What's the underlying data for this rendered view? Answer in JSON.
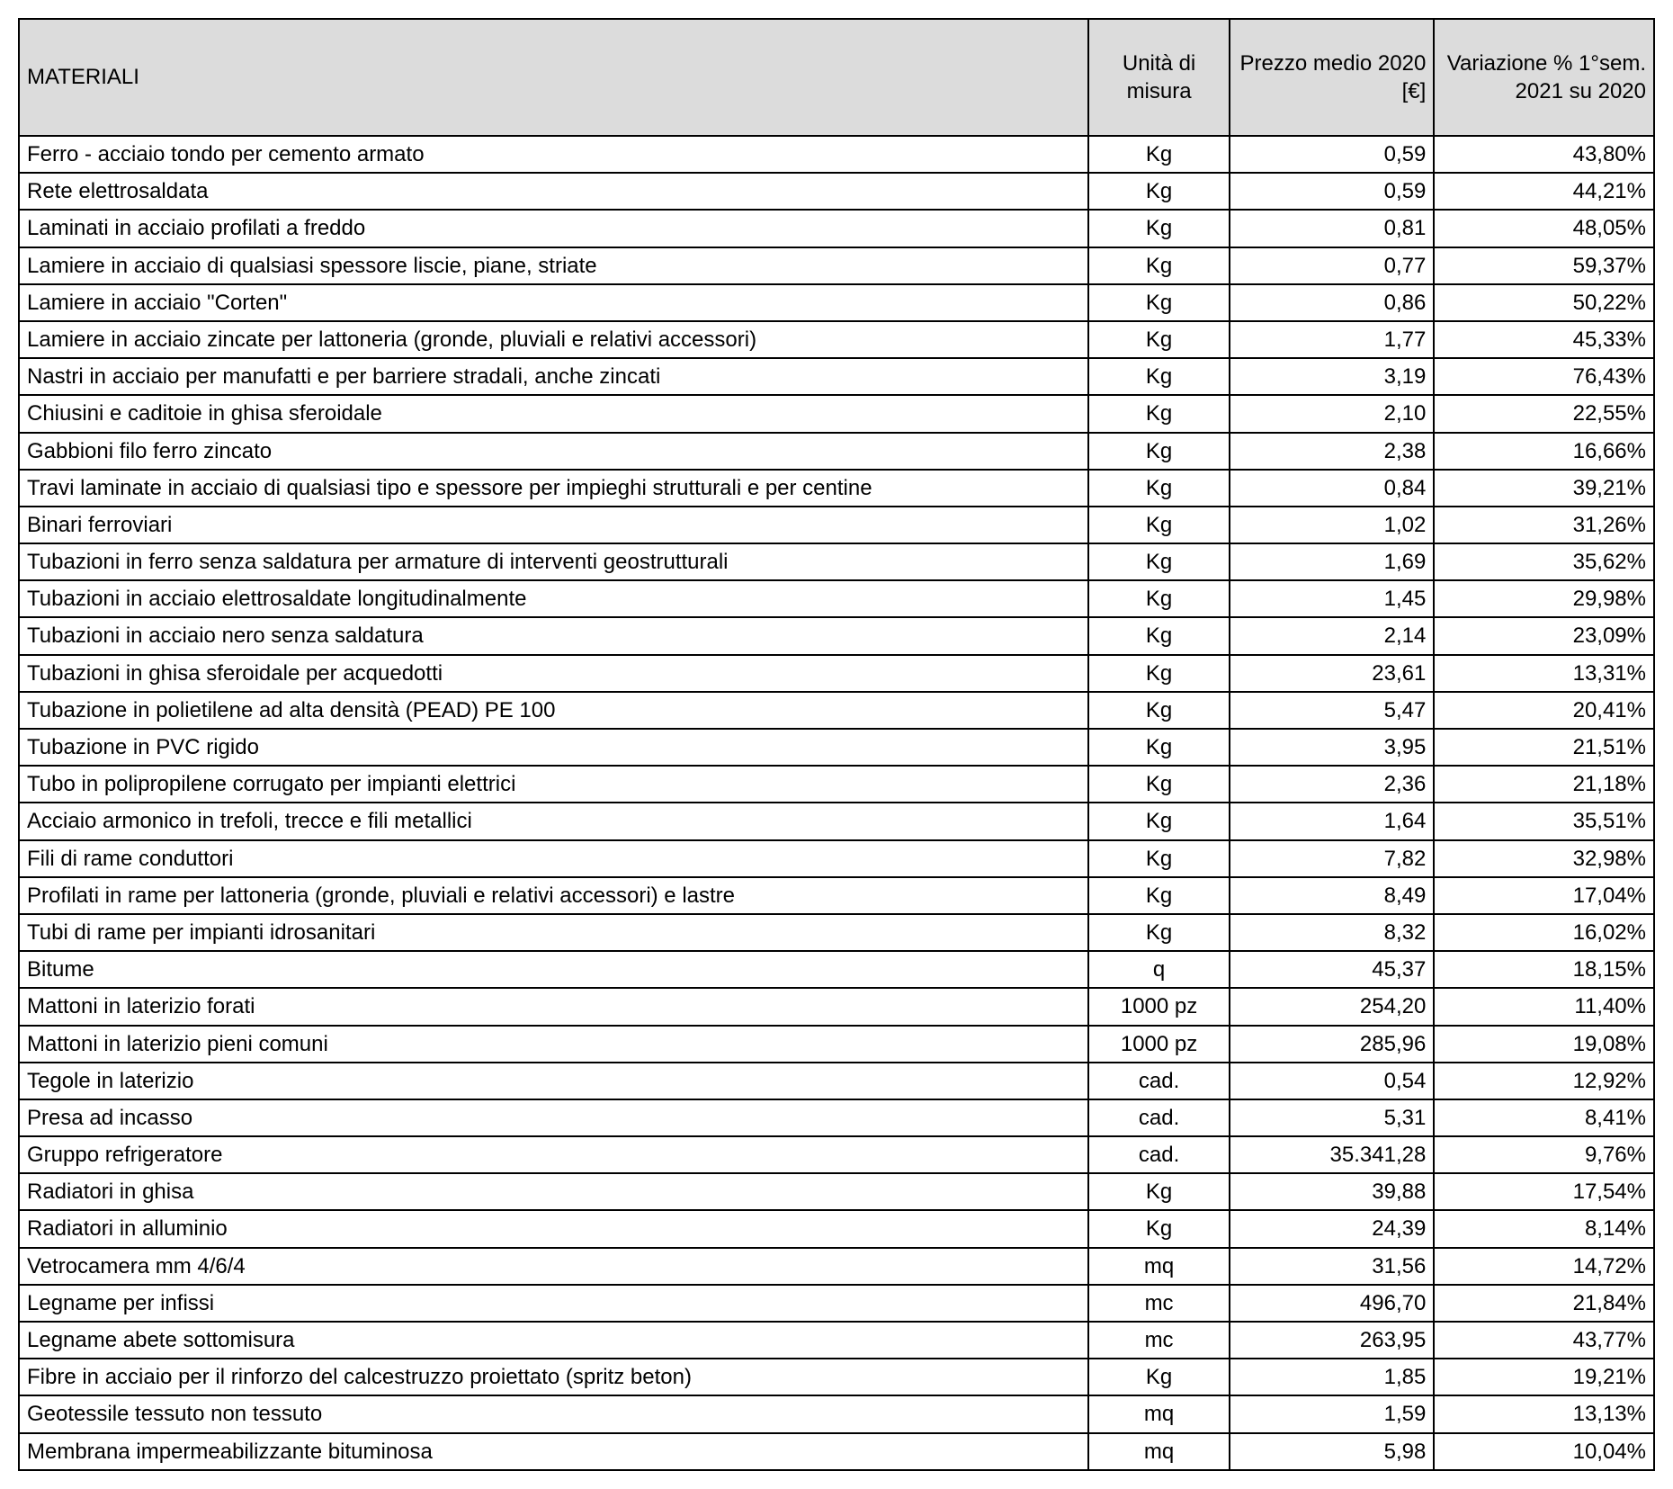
{
  "table": {
    "headers": {
      "material": "MATERIALI",
      "unit": "Unità di misura",
      "price": "Prezzo medio 2020\n[€]",
      "variation": "Variazione % 1°sem. 2021 su 2020"
    },
    "column_widths_pct": [
      67,
      8,
      12,
      13
    ],
    "header_bg": "#dcdcdc",
    "border_color": "#000000",
    "font_size_pt": 18,
    "rows": [
      {
        "material": "Ferro - acciaio tondo per cemento armato",
        "unit": "Kg",
        "price": "0,59",
        "variation": "43,80%"
      },
      {
        "material": "Rete elettrosaldata",
        "unit": "Kg",
        "price": "0,59",
        "variation": "44,21%"
      },
      {
        "material": "Laminati in acciaio profilati a freddo",
        "unit": "Kg",
        "price": "0,81",
        "variation": "48,05%"
      },
      {
        "material": "Lamiere in acciaio di qualsiasi spessore liscie, piane, striate",
        "unit": "Kg",
        "price": "0,77",
        "variation": "59,37%"
      },
      {
        "material": "Lamiere in acciaio \"Corten\"",
        "unit": "Kg",
        "price": "0,86",
        "variation": "50,22%"
      },
      {
        "material": "Lamiere in acciaio zincate per lattoneria (gronde, pluviali e relativi accessori)",
        "unit": "Kg",
        "price": "1,77",
        "variation": "45,33%"
      },
      {
        "material": "Nastri in acciaio per manufatti e per barriere stradali, anche zincati",
        "unit": "Kg",
        "price": "3,19",
        "variation": "76,43%"
      },
      {
        "material": "Chiusini e caditoie in ghisa sferoidale",
        "unit": "Kg",
        "price": "2,10",
        "variation": "22,55%"
      },
      {
        "material": "Gabbioni filo ferro zincato",
        "unit": "Kg",
        "price": "2,38",
        "variation": "16,66%"
      },
      {
        "material": "Travi laminate in acciaio di qualsiasi tipo e spessore per impieghi strutturali e per centine",
        "unit": "Kg",
        "price": "0,84",
        "variation": "39,21%"
      },
      {
        "material": "Binari ferroviari",
        "unit": "Kg",
        "price": "1,02",
        "variation": "31,26%"
      },
      {
        "material": "Tubazioni in ferro senza saldatura per armature di interventi geostrutturali",
        "unit": "Kg",
        "price": "1,69",
        "variation": "35,62%"
      },
      {
        "material": "Tubazioni in acciaio elettrosaldate longitudinalmente",
        "unit": "Kg",
        "price": "1,45",
        "variation": "29,98%"
      },
      {
        "material": "Tubazioni in acciaio nero senza saldatura",
        "unit": "Kg",
        "price": "2,14",
        "variation": "23,09%"
      },
      {
        "material": "Tubazioni in ghisa sferoidale per acquedotti",
        "unit": "Kg",
        "price": "23,61",
        "variation": "13,31%"
      },
      {
        "material": "Tubazione in polietilene ad alta densità (PEAD) PE 100",
        "unit": "Kg",
        "price": "5,47",
        "variation": "20,41%"
      },
      {
        "material": "Tubazione in PVC rigido",
        "unit": "Kg",
        "price": "3,95",
        "variation": "21,51%"
      },
      {
        "material": "Tubo in polipropilene corrugato per impianti elettrici",
        "unit": "Kg",
        "price": "2,36",
        "variation": "21,18%"
      },
      {
        "material": "Acciaio armonico in trefoli, trecce e fili metallici",
        "unit": "Kg",
        "price": "1,64",
        "variation": "35,51%"
      },
      {
        "material": "Fili di rame conduttori",
        "unit": "Kg",
        "price": "7,82",
        "variation": "32,98%"
      },
      {
        "material": "Profilati in rame per lattoneria (gronde, pluviali e relativi accessori) e lastre",
        "unit": "Kg",
        "price": "8,49",
        "variation": "17,04%"
      },
      {
        "material": "Tubi di rame per impianti idrosanitari",
        "unit": "Kg",
        "price": "8,32",
        "variation": "16,02%"
      },
      {
        "material": "Bitume",
        "unit": "q",
        "price": "45,37",
        "variation": "18,15%"
      },
      {
        "material": "Mattoni in laterizio forati",
        "unit": "1000 pz",
        "price": "254,20",
        "variation": "11,40%"
      },
      {
        "material": "Mattoni in laterizio pieni comuni",
        "unit": "1000 pz",
        "price": "285,96",
        "variation": "19,08%"
      },
      {
        "material": "Tegole in laterizio",
        "unit": "cad.",
        "price": "0,54",
        "variation": "12,92%"
      },
      {
        "material": "Presa ad incasso",
        "unit": "cad.",
        "price": "5,31",
        "variation": "8,41%"
      },
      {
        "material": "Gruppo refrigeratore",
        "unit": "cad.",
        "price": "35.341,28",
        "variation": "9,76%"
      },
      {
        "material": "Radiatori in ghisa",
        "unit": "Kg",
        "price": "39,88",
        "variation": "17,54%"
      },
      {
        "material": "Radiatori in alluminio",
        "unit": "Kg",
        "price": "24,39",
        "variation": "8,14%"
      },
      {
        "material": "Vetrocamera mm 4/6/4",
        "unit": "mq",
        "price": "31,56",
        "variation": "14,72%"
      },
      {
        "material": "Legname per infissi",
        "unit": "mc",
        "price": "496,70",
        "variation": "21,84%"
      },
      {
        "material": "Legname abete sottomisura",
        "unit": "mc",
        "price": "263,95",
        "variation": "43,77%"
      },
      {
        "material": "Fibre in acciaio per il rinforzo del calcestruzzo proiettato (spritz beton)",
        "unit": "Kg",
        "price": "1,85",
        "variation": "19,21%"
      },
      {
        "material": "Geotessile tessuto non tessuto",
        "unit": "mq",
        "price": "1,59",
        "variation": "13,13%"
      },
      {
        "material": "Membrana impermeabilizzante bituminosa",
        "unit": "mq",
        "price": "5,98",
        "variation": "10,04%"
      }
    ]
  }
}
